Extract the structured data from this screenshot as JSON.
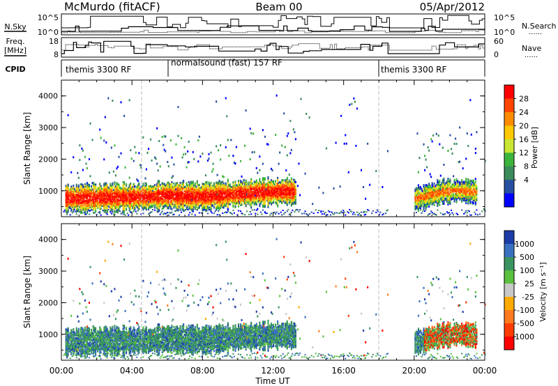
{
  "header": {
    "title": "McMurdo (fitACF)",
    "beam": "Beam 00",
    "date": "05/Apr/2012"
  },
  "noise_panel": {
    "left_label": "N.Sky",
    "right_label": "N.Search",
    "right_legend_line": "......",
    "left_ticks": [
      "10^5",
      "10^0"
    ],
    "right_ticks": [
      "10^5",
      "10^0"
    ]
  },
  "freq_panel": {
    "left_label_line1": "Freq.",
    "left_label_line2": "[MHz]",
    "right_label": "Nave",
    "right_legend_line": "......",
    "left_ticks": [
      "18",
      "8"
    ],
    "right_ticks": [
      "60",
      "0"
    ]
  },
  "cpid_panel": {
    "label": "CPID",
    "segments": [
      {
        "text": "themis 3300 RF",
        "start_hour": 0,
        "end_hour": 6
      },
      {
        "text": "normalsound (fast) 157 RF",
        "start_hour": 6,
        "end_hour": 18
      },
      {
        "text": "themis 3300 RF",
        "start_hour": 18,
        "end_hour": 24
      }
    ]
  },
  "power_panel": {
    "ylabel": "Slant Range [km]",
    "yticks": [
      "4000",
      "3000",
      "2000",
      "1000"
    ],
    "colorbar_label": "Power [dB]",
    "colorbar_ticks": [
      "28",
      "24",
      "20",
      "16",
      "12",
      "8",
      "4"
    ],
    "colorbar_colors": [
      "#ff0000",
      "#ff4500",
      "#ff8c00",
      "#ffc800",
      "#c8e632",
      "#3cb43c",
      "#3a8c5a",
      "#2850a0",
      "#0000ff"
    ]
  },
  "velocity_panel": {
    "ylabel": "Slant Range [km]",
    "yticks": [
      "4000",
      "3000",
      "2000",
      "1000"
    ],
    "colorbar_label": "Velocity [m s⁻¹]",
    "colorbar_ticks": [
      "1000",
      "500",
      "100",
      "25",
      "-25",
      "-100",
      "-500",
      "-1000"
    ],
    "colorbar_colors": [
      "#1c3ca8",
      "#3a70c0",
      "#3a9460",
      "#5ac040",
      "#c8c8c8",
      "#ffaa00",
      "#ff7a1e",
      "#ff3c00",
      "#ff0000"
    ]
  },
  "xaxis": {
    "label": "Time UT",
    "ticks": [
      "00:00",
      "04:00",
      "08:00",
      "12:00",
      "16:00",
      "20:00",
      "00:00"
    ]
  },
  "chart_data": {
    "type": "heatmap",
    "title": "McMurdo (fitACF)",
    "xlabel": "Time UT",
    "ylabel": "Slant Range [km]",
    "xlim_hours": [
      0,
      24
    ],
    "ylim_km": [
      180,
      4500
    ],
    "power_band_center_km": [
      [
        0.2,
        800
      ],
      [
        1,
        800
      ],
      [
        2,
        820
      ],
      [
        3,
        830
      ],
      [
        4,
        840
      ],
      [
        5,
        850
      ],
      [
        6,
        900
      ],
      [
        7,
        870
      ],
      [
        8,
        860
      ],
      [
        9,
        900
      ],
      [
        10,
        940
      ],
      [
        11,
        980
      ],
      [
        12,
        1000
      ],
      [
        13,
        1020
      ],
      [
        19.5,
        700
      ],
      [
        21.5,
        1000
      ],
      [
        22.5,
        1050
      ],
      [
        23.5,
        1000
      ]
    ],
    "data_gap_hours": [
      18.5,
      20.0
    ]
  }
}
